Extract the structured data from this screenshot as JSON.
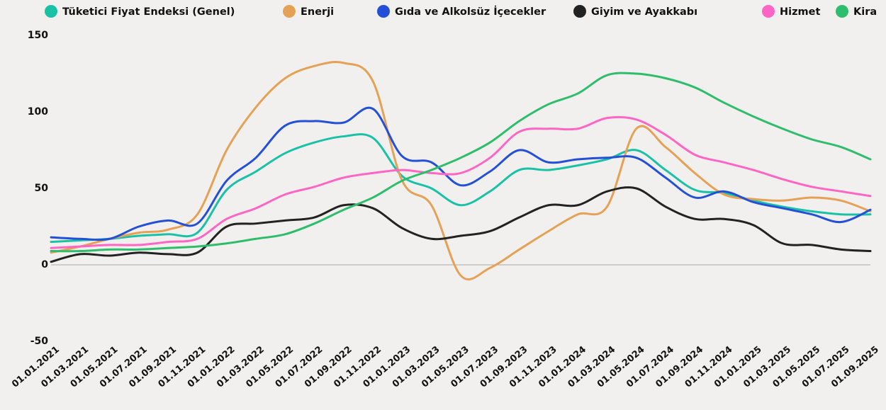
{
  "chart_data": {
    "type": "line",
    "categories": [
      "01.01.2021",
      "01.03.2021",
      "01.05.2021",
      "01.07.2021",
      "01.09.2021",
      "01.11.2021",
      "01.01.2022",
      "01.03.2022",
      "01.05.2022",
      "01.07.2022",
      "01.09.2022",
      "01.11.2022",
      "01.01.2023",
      "01.03.2023",
      "01.05.2023",
      "01.07.2023",
      "01.09.2023",
      "01.11.2023",
      "01.01.2024",
      "01.03.2024",
      "01.05.2024",
      "01.07.2024",
      "01.09.2024",
      "01.11.2024",
      "01.01.2025",
      "01.03.2025",
      "01.05.2025",
      "01.07.2025",
      "01.09.2025"
    ],
    "series": [
      {
        "name": "Tüketici Fiyat Endeksi (Genel)",
        "color": "#19c2a6",
        "values": [
          15,
          16,
          17,
          19,
          20,
          21,
          49,
          61,
          73,
          80,
          84,
          83,
          58,
          50,
          39,
          48,
          62,
          62,
          65,
          69,
          75,
          62,
          49,
          47,
          42,
          38,
          35,
          33,
          33
        ]
      },
      {
        "name": "Enerji",
        "color": "#e5a155",
        "values": [
          8,
          12,
          17,
          21,
          23,
          33,
          75,
          103,
          122,
          130,
          132,
          120,
          55,
          39,
          -7,
          -2,
          10,
          22,
          33,
          38,
          89,
          77,
          60,
          46,
          43,
          42,
          44,
          42,
          35
        ]
      },
      {
        "name": "Gıda ve Alkolsüz İçecekler",
        "color": "#2450d8",
        "values": [
          18,
          17,
          17,
          25,
          29,
          27,
          55,
          70,
          91,
          94,
          93,
          102,
          71,
          67,
          52,
          61,
          75,
          67,
          69,
          70,
          70,
          57,
          44,
          48,
          41,
          37,
          33,
          28,
          36
        ]
      },
      {
        "name": "Giyim ve Ayakkabı",
        "color": "#222222",
        "values": [
          2,
          7,
          6,
          8,
          7,
          8,
          25,
          27,
          29,
          31,
          39,
          37,
          24,
          17,
          19,
          22,
          31,
          39,
          39,
          48,
          50,
          38,
          30,
          30,
          26,
          14,
          13,
          10,
          9
        ]
      },
      {
        "name": "Hizmet",
        "color": "#ff66c4",
        "values": [
          11,
          12,
          13,
          13,
          15,
          17,
          30,
          37,
          46,
          51,
          57,
          60,
          62,
          60,
          60,
          70,
          87,
          89,
          89,
          96,
          95,
          85,
          72,
          67,
          62,
          56,
          51,
          48,
          45
        ]
      },
      {
        "name": "Kira",
        "color": "#2ebd6b",
        "values": [
          9,
          9,
          10,
          10,
          11,
          12,
          14,
          17,
          20,
          27,
          36,
          44,
          55,
          62,
          70,
          80,
          94,
          105,
          112,
          124,
          125,
          122,
          116,
          106,
          97,
          89,
          82,
          77,
          69
        ]
      }
    ],
    "ylim": [
      -50,
      150
    ],
    "yticks": [
      -50,
      0,
      50,
      100,
      150
    ],
    "legend": "top"
  }
}
